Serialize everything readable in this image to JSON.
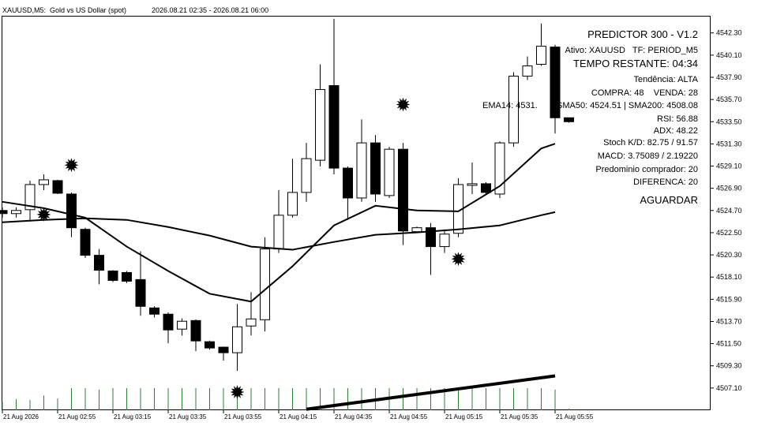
{
  "chart_data": {
    "type": "candlestick",
    "title": "XAUUSD,M5:  Gold vs US Dollar (spot)",
    "subtitle": "2026.08.21 02:35 - 2026.08.21 06:00",
    "categories": [
      "21 Aug 2026",
      null,
      null,
      null,
      "21 Aug 02:55",
      null,
      null,
      null,
      "21 Aug 03:15",
      null,
      null,
      null,
      "21 Aug 03:35",
      null,
      null,
      null,
      "21 Aug 03:55",
      null,
      null,
      null,
      "21 Aug 04:15",
      null,
      null,
      null,
      "21 Aug 04:35",
      null,
      null,
      null,
      "21 Aug 04:55",
      null,
      null,
      null,
      "21 Aug 05:15",
      null,
      null,
      null,
      "21 Aug 05:35",
      null,
      null,
      null,
      "21 Aug 05:55",
      null
    ],
    "open": [
      4524.7,
      4524.39,
      4524.78,
      4527.27,
      4527.66,
      4526.33,
      4522.83,
      4520.26,
      4518.7,
      4518.55,
      4517.85,
      4515.04,
      4514.42,
      4512.94,
      4513.79,
      4511.69,
      4511.15,
      4510.6,
      4513.25,
      4513.87,
      4520.88,
      4524.23,
      4526.49,
      4529.68,
      4537.08,
      4528.9,
      4525.94,
      4531.4,
      4526.18,
      4530.77,
      4522.6,
      4522.99,
      4521.12,
      4522.44,
      4527.19,
      4527.35,
      4526.33,
      4531.4,
      4538.02,
      4539.19,
      4540.9,
      4533.89
    ],
    "high": [
      4525.01,
      4525.01,
      4527.66,
      4528.28,
      4527.74,
      4526.49,
      4522.99,
      4520.88,
      4518.78,
      4518.7,
      4520.65,
      4515.2,
      4514.6,
      4514.0,
      4513.9,
      4511.8,
      4511.2,
      4515.43,
      4516.6,
      4522.05,
      4526.72,
      4529.84,
      4531.4,
      4539.19,
      4543.7,
      4529.06,
      4533.73,
      4532.18,
      4531.01,
      4531.4,
      4523.1,
      4523.45,
      4522.83,
      4527.89,
      4529.45,
      4527.5,
      4531.55,
      4538.41,
      4539.96,
      4543.24,
      4541.13,
      4533.9
    ],
    "low": [
      4523.99,
      4523.99,
      4523.61,
      4526.72,
      4526.33,
      4522.05,
      4520.0,
      4517.38,
      4517.6,
      4517.5,
      4514.26,
      4514.1,
      4511.54,
      4512.3,
      4510.76,
      4510.9,
      4509.82,
      4508.81,
      4512.31,
      4512.7,
      4520.49,
      4523.99,
      4525.56,
      4529.06,
      4528.28,
      4523.77,
      4525.56,
      4525.56,
      4525.94,
      4521.27,
      4522.5,
      4518.31,
      4520.49,
      4522.05,
      4526.33,
      4526.3,
      4525.94,
      4531.01,
      4537.63,
      4539.03,
      4532.33,
      4533.4
    ],
    "close": [
      4524.39,
      4524.7,
      4527.27,
      4527.74,
      4526.41,
      4522.99,
      4520.26,
      4518.78,
      4517.77,
      4517.69,
      4515.2,
      4514.42,
      4512.86,
      4513.72,
      4511.77,
      4511.07,
      4510.6,
      4513.17,
      4513.95,
      4520.88,
      4524.23,
      4526.49,
      4529.84,
      4536.69,
      4528.9,
      4525.94,
      4531.4,
      4526.33,
      4530.77,
      4522.67,
      4522.99,
      4521.12,
      4522.36,
      4527.27,
      4527.35,
      4526.49,
      4531.4,
      4538.02,
      4539.03,
      4540.98,
      4533.89,
      4533.5
    ],
    "volume": [
      12,
      15,
      14,
      20,
      16,
      30,
      30,
      28,
      30,
      30,
      30,
      30,
      30,
      30,
      30,
      30,
      30,
      30,
      30,
      30,
      30,
      30,
      30,
      30,
      30,
      30,
      30,
      30,
      30,
      30,
      30,
      30,
      30,
      30,
      30,
      30,
      30,
      30,
      30,
      30,
      28,
      2
    ],
    "volume_color": "#2e7d32",
    "up_color": "#ffffff",
    "down_color": "#000000",
    "lines": [
      {
        "color": "#000000",
        "width": 2,
        "x": [
          0,
          3,
          6,
          9,
          12,
          15,
          18,
          21,
          24,
          27,
          30,
          33,
          36,
          39,
          40
        ],
        "values": [
          4525.56,
          4524.93,
          4523.99,
          4521.12,
          4518.7,
          4516.45,
          4515.67,
          4519.17,
          4523.22,
          4525.17,
          4524.7,
          4524.62,
          4527.12,
          4530.85,
          4531.32
        ]
      },
      {
        "color": "#000000",
        "width": 2,
        "x": [
          0,
          3,
          6,
          9,
          12,
          15,
          18,
          21,
          24,
          27,
          30,
          33,
          36,
          39,
          40
        ],
        "values": [
          4523.53,
          4523.77,
          4523.92,
          4523.77,
          4523.06,
          4522.21,
          4521.12,
          4520.81,
          4521.58,
          4522.29,
          4522.52,
          4522.83,
          4523.22,
          4524.23,
          4524.54
        ]
      },
      {
        "color": "#000000",
        "width": 4,
        "x": [
          22,
          40
        ],
        "values": [
          4505.0,
          4508.3
        ]
      }
    ],
    "signals": {
      "color": "#000000",
      "x": [
        5,
        3,
        29,
        33,
        17
      ],
      "values": [
        4529.2,
        4524.3,
        4535.2,
        4519.9,
        4506.7
      ]
    },
    "ylim": [
      4504.9,
      4544.0
    ],
    "yticks": [
      {
        "value": 4542.3,
        "label": "4542.30"
      },
      {
        "value": 4540.1,
        "label": "4540.10"
      },
      {
        "value": 4537.9,
        "label": "4537.90"
      },
      {
        "value": 4535.7,
        "label": "4535.70"
      },
      {
        "value": 4533.5,
        "label": "4533.50"
      },
      {
        "value": 4531.3,
        "label": "4531.30"
      },
      {
        "value": 4529.1,
        "label": "4529.10"
      },
      {
        "value": 4526.9,
        "label": "4526.90"
      },
      {
        "value": 4524.7,
        "label": "4524.70"
      },
      {
        "value": 4522.5,
        "label": "4522.50"
      },
      {
        "value": 4520.3,
        "label": "4520.30"
      },
      {
        "value": 4518.1,
        "label": "4518.10"
      },
      {
        "value": 4515.9,
        "label": "4515.90"
      },
      {
        "value": 4513.7,
        "label": "4513.70"
      },
      {
        "value": 4511.5,
        "label": "4511.50"
      },
      {
        "value": 4509.3,
        "label": "4509.30"
      },
      {
        "value": 4507.1,
        "label": "4507.10"
      }
    ],
    "annotations": [
      "PREDICTOR 300 - V1.2",
      "Ativo: XAUUSD   TF: PERIOD_M5",
      "TEMPO RESTANTE: 04:34",
      "Tendência: ALTA",
      "COMPRA: 48    VENDA: 28",
      "EMA14: 4531.      | SMA50: 4524.51 | SMA200: 4508.08",
      "RSI: 56.88",
      "ADX: 48.22",
      "Stoch K/D: 82.75 / 91.57",
      "MACD: 3.75089 / 2.19220",
      "Predominio comprador: 20",
      "DIFERENCA: 20",
      "AGUARDAR"
    ]
  }
}
